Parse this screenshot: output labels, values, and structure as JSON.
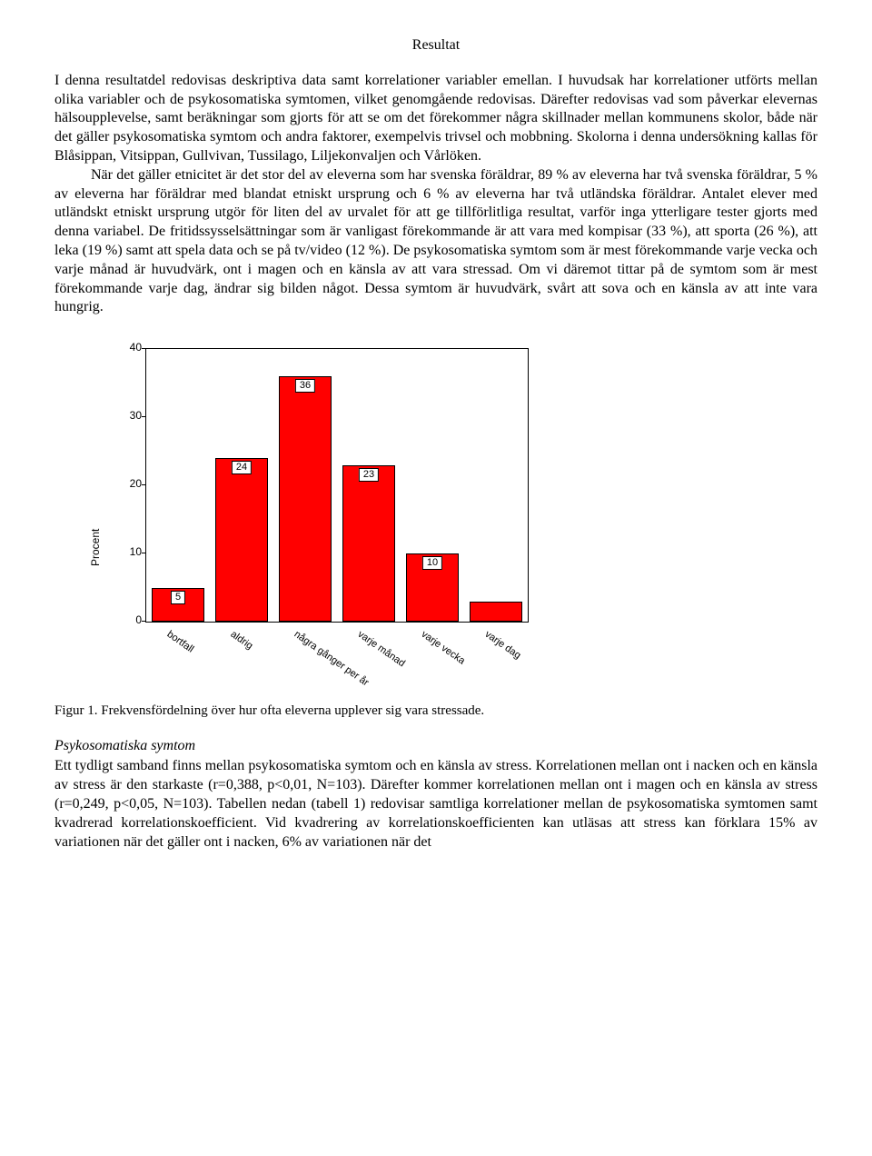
{
  "title": "Resultat",
  "para1": "I denna resultatdel redovisas deskriptiva data samt korrelationer variabler emellan. I huvudsak har korrelationer utförts mellan olika variabler och de psykosomatiska symtomen, vilket genomgående redovisas. Därefter redovisas vad som påverkar elevernas hälsoupplevelse, samt beräkningar som gjorts för att se om det förekommer några skillnader mellan kommunens skolor, både när det gäller psykosomatiska symtom och andra faktorer, exempelvis trivsel och mobbning. Skolorna i denna undersökning kallas för Blåsippan, Vitsippan, Gullvivan, Tussilago, Liljekonvaljen och Vårlöken.",
  "para2": "När det gäller etnicitet är det stor del av eleverna som har svenska föräldrar, 89 % av eleverna har två svenska föräldrar, 5 % av eleverna har föräldrar med blandat etniskt ursprung och 6 % av eleverna har två utländska föräldrar. Antalet elever med utländskt etniskt ursprung utgör för liten del av urvalet för att ge tillförlitliga resultat, varför inga ytterligare tester gjorts med denna variabel. De fritidssysselsättningar som är vanligast förekommande är att vara med kompisar (33 %), att sporta (26 %), att leka (19 %) samt att spela data och se på tv/video (12 %). De psykosomatiska symtom som är mest förekommande varje vecka och varje månad är huvudvärk, ont i magen och en känsla av att vara stressad. Om vi däremot tittar på de symtom som är mest förekommande varje dag, ändrar sig bilden något. Dessa symtom är huvudvärk, svårt att sova och en känsla av att inte vara hungrig.",
  "chart": {
    "type": "bar",
    "ylabel": "Procent",
    "ylim": [
      0,
      40
    ],
    "ytick_step": 10,
    "bar_color": "#ff0000",
    "border_color": "#000000",
    "background_color": "#ffffff",
    "label_fontsize": 11,
    "axis_fontsize": 12,
    "categories": [
      "bortfall",
      "aldrig",
      "några gånger per år",
      "varje månad",
      "varje vecka",
      "varje dag"
    ],
    "values": [
      5,
      24,
      36,
      23,
      10,
      3
    ],
    "bar_labels": [
      "5",
      "24",
      "36",
      "23",
      "10",
      ""
    ]
  },
  "figcaption": "Figur 1.  Frekvensfördelning över hur ofta eleverna upplever sig vara stressade.",
  "subheading": "Psykosomatiska symtom",
  "para3": "Ett tydligt samband finns mellan psykosomatiska symtom och en känsla av stress. Korrelationen mellan ont i nacken och en känsla av stress är den starkaste (r=0,388, p<0,01, N=103). Därefter kommer korrelationen mellan ont i magen och en känsla av stress (r=0,249, p<0,05, N=103). Tabellen nedan (tabell 1) redovisar samtliga korrelationer mellan de psykosomatiska symtomen samt kvadrerad korrelationskoefficient. Vid kvadrering av korrelationskoefficienten kan utläsas att stress kan förklara 15% av variationen när det gäller ont i nacken, 6% av variationen när det"
}
